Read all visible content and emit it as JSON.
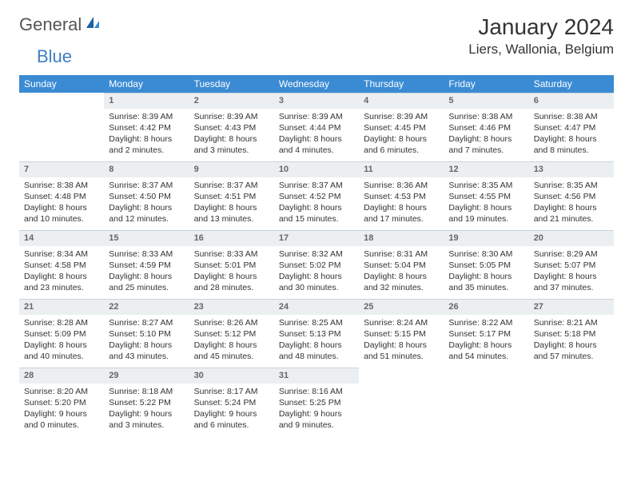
{
  "logo": {
    "part1": "General",
    "part2": "Blue"
  },
  "title": "January 2024",
  "subtitle": "Liers, Wallonia, Belgium",
  "colors": {
    "header_bg": "#3b8bd4",
    "header_text": "#ffffff",
    "daynum_bg": "#eceff1",
    "daynum_border": "#c9d3db",
    "page_bg": "#ffffff",
    "text": "#333333",
    "logo_blue": "#3b7fc4"
  },
  "typography": {
    "title_fontsize": 28,
    "subtitle_fontsize": 17,
    "header_fontsize": 12,
    "cell_fontsize": 10.5,
    "daynum_fontsize": 11
  },
  "day_headers": [
    "Sunday",
    "Monday",
    "Tuesday",
    "Wednesday",
    "Thursday",
    "Friday",
    "Saturday"
  ],
  "weeks": [
    [
      {
        "blank": true
      },
      {
        "num": "1",
        "sunrise": "Sunrise: 8:39 AM",
        "sunset": "Sunset: 4:42 PM",
        "daylight": "Daylight: 8 hours and 2 minutes."
      },
      {
        "num": "2",
        "sunrise": "Sunrise: 8:39 AM",
        "sunset": "Sunset: 4:43 PM",
        "daylight": "Daylight: 8 hours and 3 minutes."
      },
      {
        "num": "3",
        "sunrise": "Sunrise: 8:39 AM",
        "sunset": "Sunset: 4:44 PM",
        "daylight": "Daylight: 8 hours and 4 minutes."
      },
      {
        "num": "4",
        "sunrise": "Sunrise: 8:39 AM",
        "sunset": "Sunset: 4:45 PM",
        "daylight": "Daylight: 8 hours and 6 minutes."
      },
      {
        "num": "5",
        "sunrise": "Sunrise: 8:38 AM",
        "sunset": "Sunset: 4:46 PM",
        "daylight": "Daylight: 8 hours and 7 minutes."
      },
      {
        "num": "6",
        "sunrise": "Sunrise: 8:38 AM",
        "sunset": "Sunset: 4:47 PM",
        "daylight": "Daylight: 8 hours and 8 minutes."
      }
    ],
    [
      {
        "num": "7",
        "sunrise": "Sunrise: 8:38 AM",
        "sunset": "Sunset: 4:48 PM",
        "daylight": "Daylight: 8 hours and 10 minutes."
      },
      {
        "num": "8",
        "sunrise": "Sunrise: 8:37 AM",
        "sunset": "Sunset: 4:50 PM",
        "daylight": "Daylight: 8 hours and 12 minutes."
      },
      {
        "num": "9",
        "sunrise": "Sunrise: 8:37 AM",
        "sunset": "Sunset: 4:51 PM",
        "daylight": "Daylight: 8 hours and 13 minutes."
      },
      {
        "num": "10",
        "sunrise": "Sunrise: 8:37 AM",
        "sunset": "Sunset: 4:52 PM",
        "daylight": "Daylight: 8 hours and 15 minutes."
      },
      {
        "num": "11",
        "sunrise": "Sunrise: 8:36 AM",
        "sunset": "Sunset: 4:53 PM",
        "daylight": "Daylight: 8 hours and 17 minutes."
      },
      {
        "num": "12",
        "sunrise": "Sunrise: 8:35 AM",
        "sunset": "Sunset: 4:55 PM",
        "daylight": "Daylight: 8 hours and 19 minutes."
      },
      {
        "num": "13",
        "sunrise": "Sunrise: 8:35 AM",
        "sunset": "Sunset: 4:56 PM",
        "daylight": "Daylight: 8 hours and 21 minutes."
      }
    ],
    [
      {
        "num": "14",
        "sunrise": "Sunrise: 8:34 AM",
        "sunset": "Sunset: 4:58 PM",
        "daylight": "Daylight: 8 hours and 23 minutes."
      },
      {
        "num": "15",
        "sunrise": "Sunrise: 8:33 AM",
        "sunset": "Sunset: 4:59 PM",
        "daylight": "Daylight: 8 hours and 25 minutes."
      },
      {
        "num": "16",
        "sunrise": "Sunrise: 8:33 AM",
        "sunset": "Sunset: 5:01 PM",
        "daylight": "Daylight: 8 hours and 28 minutes."
      },
      {
        "num": "17",
        "sunrise": "Sunrise: 8:32 AM",
        "sunset": "Sunset: 5:02 PM",
        "daylight": "Daylight: 8 hours and 30 minutes."
      },
      {
        "num": "18",
        "sunrise": "Sunrise: 8:31 AM",
        "sunset": "Sunset: 5:04 PM",
        "daylight": "Daylight: 8 hours and 32 minutes."
      },
      {
        "num": "19",
        "sunrise": "Sunrise: 8:30 AM",
        "sunset": "Sunset: 5:05 PM",
        "daylight": "Daylight: 8 hours and 35 minutes."
      },
      {
        "num": "20",
        "sunrise": "Sunrise: 8:29 AM",
        "sunset": "Sunset: 5:07 PM",
        "daylight": "Daylight: 8 hours and 37 minutes."
      }
    ],
    [
      {
        "num": "21",
        "sunrise": "Sunrise: 8:28 AM",
        "sunset": "Sunset: 5:09 PM",
        "daylight": "Daylight: 8 hours and 40 minutes."
      },
      {
        "num": "22",
        "sunrise": "Sunrise: 8:27 AM",
        "sunset": "Sunset: 5:10 PM",
        "daylight": "Daylight: 8 hours and 43 minutes."
      },
      {
        "num": "23",
        "sunrise": "Sunrise: 8:26 AM",
        "sunset": "Sunset: 5:12 PM",
        "daylight": "Daylight: 8 hours and 45 minutes."
      },
      {
        "num": "24",
        "sunrise": "Sunrise: 8:25 AM",
        "sunset": "Sunset: 5:13 PM",
        "daylight": "Daylight: 8 hours and 48 minutes."
      },
      {
        "num": "25",
        "sunrise": "Sunrise: 8:24 AM",
        "sunset": "Sunset: 5:15 PM",
        "daylight": "Daylight: 8 hours and 51 minutes."
      },
      {
        "num": "26",
        "sunrise": "Sunrise: 8:22 AM",
        "sunset": "Sunset: 5:17 PM",
        "daylight": "Daylight: 8 hours and 54 minutes."
      },
      {
        "num": "27",
        "sunrise": "Sunrise: 8:21 AM",
        "sunset": "Sunset: 5:18 PM",
        "daylight": "Daylight: 8 hours and 57 minutes."
      }
    ],
    [
      {
        "num": "28",
        "sunrise": "Sunrise: 8:20 AM",
        "sunset": "Sunset: 5:20 PM",
        "daylight": "Daylight: 9 hours and 0 minutes."
      },
      {
        "num": "29",
        "sunrise": "Sunrise: 8:18 AM",
        "sunset": "Sunset: 5:22 PM",
        "daylight": "Daylight: 9 hours and 3 minutes."
      },
      {
        "num": "30",
        "sunrise": "Sunrise: 8:17 AM",
        "sunset": "Sunset: 5:24 PM",
        "daylight": "Daylight: 9 hours and 6 minutes."
      },
      {
        "num": "31",
        "sunrise": "Sunrise: 8:16 AM",
        "sunset": "Sunset: 5:25 PM",
        "daylight": "Daylight: 9 hours and 9 minutes."
      },
      {
        "blank": true
      },
      {
        "blank": true
      },
      {
        "blank": true
      }
    ]
  ]
}
